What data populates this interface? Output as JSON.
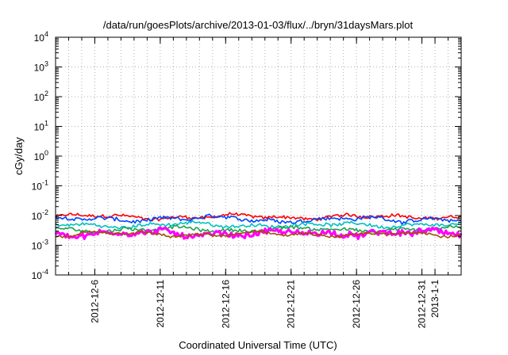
{
  "chart_data": {
    "type": "line",
    "title": "/data/run/goesPlots/archive/2013-01-03/flux/../bryn/31daysMars.plot",
    "xlabel": "Coordinated Universal Time (UTC)",
    "ylabel": "cGy/day",
    "y_scale": "log",
    "ylim": [
      0.0001,
      10000
    ],
    "xlim": [
      "2012-12-03",
      "2013-01-03"
    ],
    "grid": true,
    "legend": "none",
    "y_ticks": [
      {
        "base": "10",
        "exp": "-4"
      },
      {
        "base": "10",
        "exp": "-3"
      },
      {
        "base": "10",
        "exp": "-2"
      },
      {
        "base": "10",
        "exp": "-1"
      },
      {
        "base": "10",
        "exp": "0"
      },
      {
        "base": "10",
        "exp": "1"
      },
      {
        "base": "10",
        "exp": "2"
      },
      {
        "base": "10",
        "exp": "3"
      },
      {
        "base": "10",
        "exp": "4"
      }
    ],
    "x_ticks": [
      {
        "date": "2012-12-06",
        "label": "2012-12-6"
      },
      {
        "date": "2012-12-11",
        "label": "2012-12-11"
      },
      {
        "date": "2012-12-16",
        "label": "2012-12-16"
      },
      {
        "date": "2012-12-21",
        "label": "2012-12-21"
      },
      {
        "date": "2012-12-26",
        "label": "2012-12-26"
      },
      {
        "date": "2012-12-31",
        "label": "2012-12-31"
      },
      {
        "date": "2013-01-01",
        "label": "2013-1-1"
      }
    ],
    "series": [
      {
        "color": "#ff0000",
        "y_level": 0.009,
        "noise": 0.05
      },
      {
        "color": "#0044ff",
        "y_level": 0.0075,
        "noise": 0.06
      },
      {
        "color": "#00c0c0",
        "y_level": 0.0048,
        "noise": 0.05
      },
      {
        "color": "#20a050",
        "y_level": 0.0034,
        "noise": 0.05
      },
      {
        "color": "#ff00ff",
        "y_level": 0.0025,
        "noise": 0.09
      },
      {
        "color": "#a05000",
        "y_level": 0.0023,
        "noise": 0.04
      }
    ]
  }
}
